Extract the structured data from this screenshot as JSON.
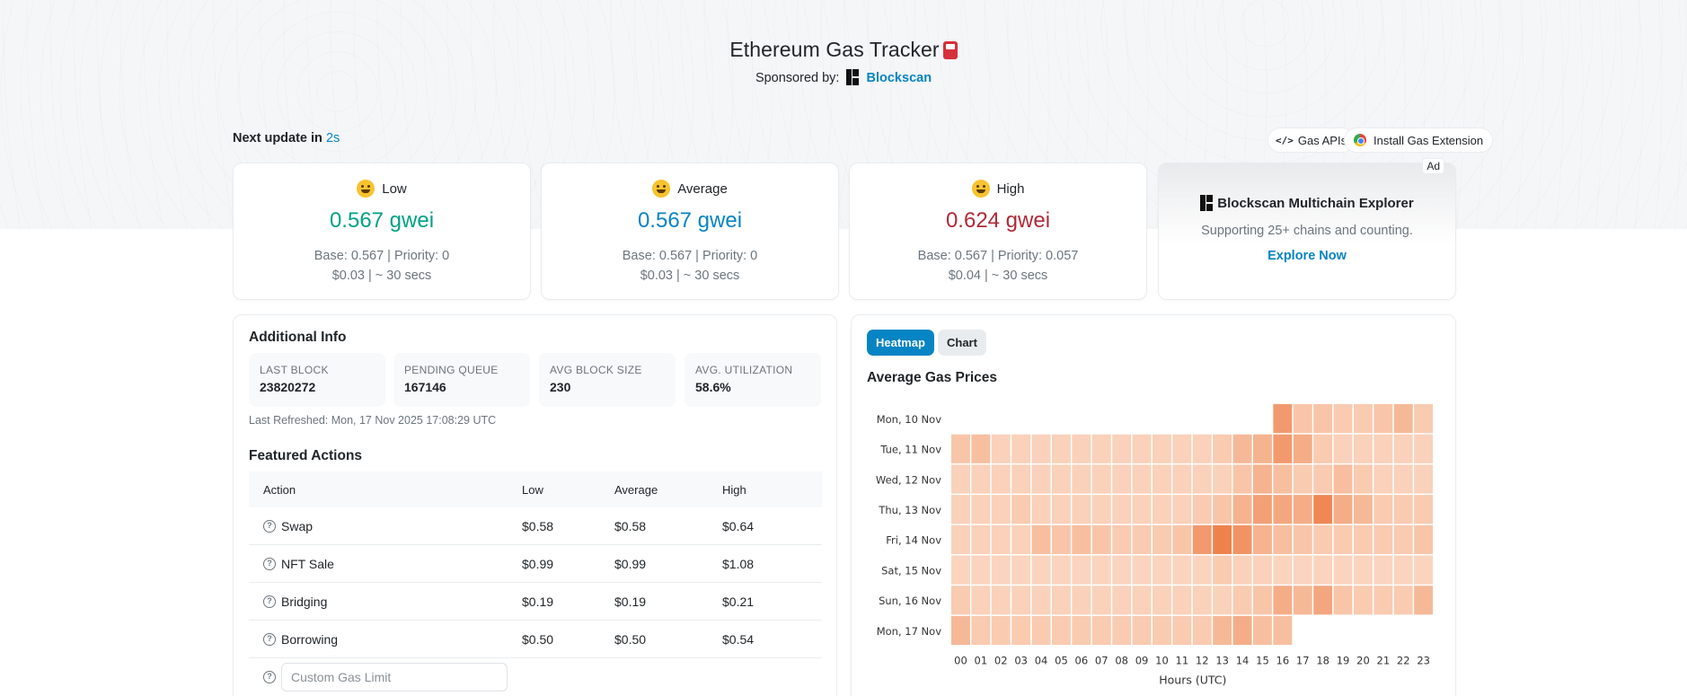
{
  "header": {
    "title": "Ethereum Gas Tracker",
    "sponsor_label": "Sponsored by:",
    "sponsor_name": "Blockscan"
  },
  "update": {
    "label": "Next update in",
    "seconds": "2s"
  },
  "buttons": {
    "gas_apis": "Gas APIs",
    "extension": "Install Gas Extension"
  },
  "gas": {
    "low": {
      "label": "Low",
      "price": "0.567 gwei",
      "base_priority": "Base: 0.567 | Priority: 0",
      "cost_time": "$0.03 | ~ 30 secs",
      "color": "#00a186"
    },
    "average": {
      "label": "Average",
      "price": "0.567 gwei",
      "base_priority": "Base: 0.567 | Priority: 0",
      "cost_time": "$0.03 | ~ 30 secs",
      "color": "#0784c3"
    },
    "high": {
      "label": "High",
      "price": "0.624 gwei",
      "base_priority": "Base: 0.567 | Priority: 0.057",
      "cost_time": "$0.04 | ~ 30 secs",
      "color": "#b02a37"
    }
  },
  "ad": {
    "badge": "Ad",
    "title": "Blockscan Multichain Explorer",
    "subtitle": "Supporting 25+ chains and counting.",
    "link": "Explore Now"
  },
  "info": {
    "title": "Additional Info",
    "stats": [
      {
        "label": "LAST BLOCK",
        "value": "23820272"
      },
      {
        "label": "PENDING QUEUE",
        "value": "167146"
      },
      {
        "label": "AVG BLOCK SIZE",
        "value": "230"
      },
      {
        "label": "AVG. UTILIZATION",
        "value": "58.6%"
      }
    ],
    "last_refreshed": "Last Refreshed: Mon, 17 Nov 2025 17:08:29 UTC"
  },
  "actions": {
    "title": "Featured Actions",
    "columns": [
      "Action",
      "Low",
      "Average",
      "High"
    ],
    "rows": [
      {
        "action": "Swap",
        "low": "$0.58",
        "average": "$0.58",
        "high": "$0.64"
      },
      {
        "action": "NFT Sale",
        "low": "$0.99",
        "average": "$0.99",
        "high": "$1.08"
      },
      {
        "action": "Bridging",
        "low": "$0.19",
        "average": "$0.19",
        "high": "$0.21"
      },
      {
        "action": "Borrowing",
        "low": "$0.50",
        "average": "$0.50",
        "high": "$0.54"
      }
    ],
    "custom_placeholder": "Custom Gas Limit"
  },
  "heatmap_tabs": {
    "active": "Heatmap",
    "inactive": "Chart"
  },
  "chart_data": {
    "type": "heatmap",
    "title": "Average Gas Prices",
    "xlabel": "Hours (UTC)",
    "ylabel": "",
    "x": [
      "00",
      "01",
      "02",
      "03",
      "04",
      "05",
      "06",
      "07",
      "08",
      "09",
      "10",
      "11",
      "12",
      "13",
      "14",
      "15",
      "16",
      "17",
      "18",
      "19",
      "20",
      "21",
      "22",
      "23"
    ],
    "y": [
      "Mon, 10 Nov",
      "Tue, 11 Nov",
      "Wed, 12 Nov",
      "Thu, 13 Nov",
      "Fri, 14 Nov",
      "Sat, 15 Nov",
      "Sun, 16 Nov",
      "Mon, 17 Nov"
    ],
    "intensity": [
      [
        null,
        null,
        null,
        null,
        null,
        null,
        null,
        null,
        null,
        null,
        null,
        null,
        null,
        null,
        null,
        null,
        0.6,
        0.25,
        0.25,
        0.2,
        0.2,
        0.25,
        0.35,
        0.2
      ],
      [
        0.25,
        0.3,
        0.15,
        0.15,
        0.15,
        0.15,
        0.15,
        0.15,
        0.15,
        0.15,
        0.15,
        0.15,
        0.15,
        0.2,
        0.35,
        0.4,
        0.6,
        0.45,
        0.2,
        0.15,
        0.15,
        0.15,
        0.15,
        0.15
      ],
      [
        0.15,
        0.15,
        0.15,
        0.15,
        0.15,
        0.15,
        0.15,
        0.15,
        0.15,
        0.15,
        0.15,
        0.15,
        0.15,
        0.15,
        0.25,
        0.4,
        0.3,
        0.2,
        0.2,
        0.3,
        0.2,
        0.15,
        0.15,
        0.15
      ],
      [
        0.15,
        0.15,
        0.15,
        0.2,
        0.15,
        0.15,
        0.15,
        0.15,
        0.15,
        0.15,
        0.15,
        0.15,
        0.2,
        0.25,
        0.4,
        0.55,
        0.5,
        0.45,
        0.75,
        0.45,
        0.35,
        0.2,
        0.2,
        0.2
      ],
      [
        0.15,
        0.15,
        0.15,
        0.15,
        0.3,
        0.25,
        0.3,
        0.25,
        0.2,
        0.2,
        0.2,
        0.25,
        0.6,
        0.8,
        0.65,
        0.4,
        0.3,
        0.25,
        0.2,
        0.2,
        0.2,
        0.2,
        0.2,
        0.25
      ],
      [
        0.12,
        0.12,
        0.12,
        0.12,
        0.12,
        0.12,
        0.12,
        0.12,
        0.12,
        0.12,
        0.12,
        0.12,
        0.12,
        0.2,
        0.15,
        0.15,
        0.12,
        0.12,
        0.12,
        0.12,
        0.12,
        0.12,
        0.12,
        0.12
      ],
      [
        0.2,
        0.15,
        0.15,
        0.15,
        0.15,
        0.15,
        0.15,
        0.15,
        0.15,
        0.15,
        0.15,
        0.15,
        0.15,
        0.15,
        0.2,
        0.25,
        0.45,
        0.35,
        0.5,
        0.25,
        0.2,
        0.2,
        0.2,
        0.35
      ],
      [
        0.35,
        0.2,
        0.2,
        0.2,
        0.2,
        0.2,
        0.2,
        0.2,
        0.2,
        0.2,
        0.2,
        0.2,
        0.2,
        0.35,
        0.45,
        0.3,
        0.3,
        null,
        null,
        null,
        null,
        null,
        null,
        null
      ]
    ],
    "color_low": "#fde3d3",
    "color_high": "#ea6a2a"
  }
}
